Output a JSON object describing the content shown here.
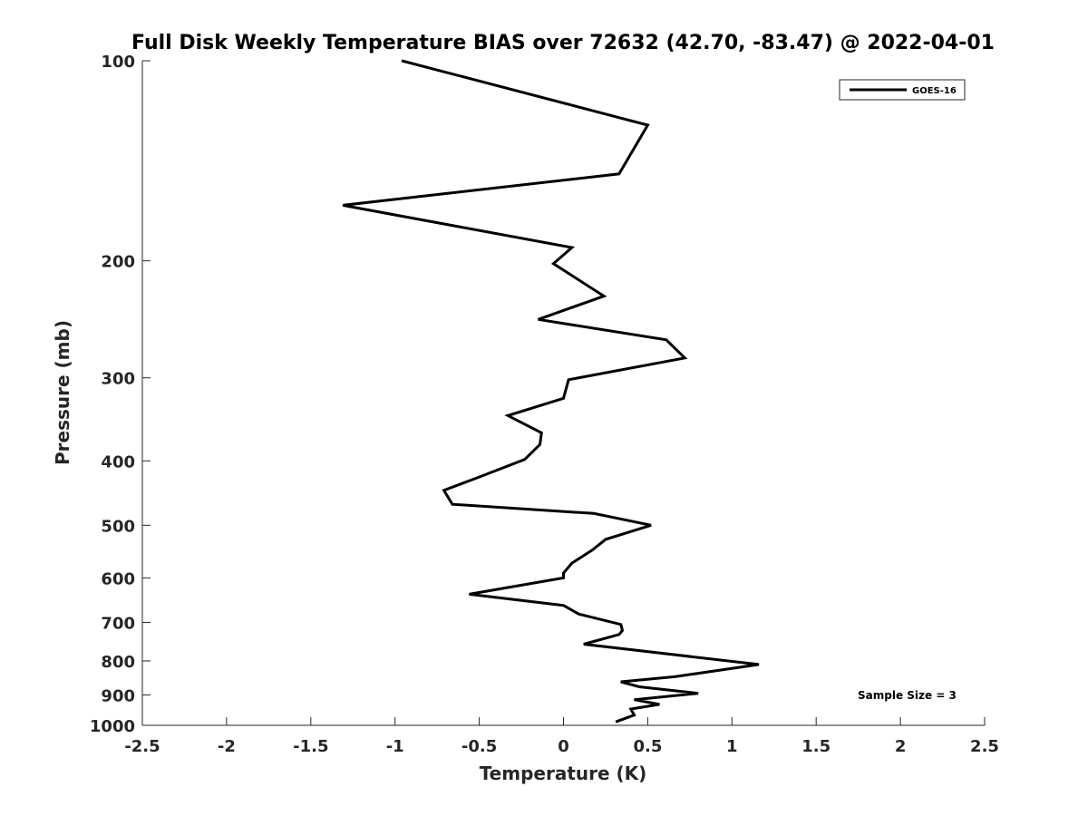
{
  "chart_data": {
    "type": "line",
    "title": "Full Disk Weekly Temperature BIAS over 72632 (42.70, -83.47) @ 2022-04-01",
    "xlabel": "Temperature (K)",
    "ylabel": "Pressure (mb)",
    "xlim": [
      -2.5,
      2.5
    ],
    "ylim": [
      100,
      1000
    ],
    "y_scale": "log",
    "y_reversed": true,
    "xticks": [
      "-2.5",
      "-2",
      "-1.5",
      "-1",
      "-0.5",
      "0",
      "0.5",
      "1",
      "1.5",
      "2",
      "2.5"
    ],
    "yticks": [
      "100",
      "200",
      "300",
      "400",
      "500",
      "600",
      "700",
      "800",
      "900",
      "1000"
    ],
    "grid": false,
    "legend_position": "top-right",
    "series": [
      {
        "name": "GOES-16",
        "color": "#000000",
        "points": [
          [
            -0.96,
            100
          ],
          [
            0.5,
            125
          ],
          [
            0.33,
            148
          ],
          [
            -1.31,
            165
          ],
          [
            0.05,
            191
          ],
          [
            -0.06,
            202
          ],
          [
            0.24,
            226
          ],
          [
            -0.15,
            245
          ],
          [
            0.61,
            263
          ],
          [
            0.72,
            280
          ],
          [
            0.03,
            302
          ],
          [
            0.0,
            322
          ],
          [
            -0.33,
            342
          ],
          [
            -0.13,
            363
          ],
          [
            -0.14,
            378
          ],
          [
            -0.23,
            398
          ],
          [
            -0.5,
            423
          ],
          [
            -0.71,
            443
          ],
          [
            -0.66,
            465
          ],
          [
            0.18,
            480
          ],
          [
            0.52,
            500
          ],
          [
            0.25,
            525
          ],
          [
            0.17,
            545
          ],
          [
            0.05,
            570
          ],
          [
            0.0,
            590
          ],
          [
            0.0,
            600
          ],
          [
            -0.56,
            635
          ],
          [
            0.0,
            660
          ],
          [
            0.09,
            680
          ],
          [
            0.34,
            705
          ],
          [
            0.35,
            720
          ],
          [
            0.33,
            730
          ],
          [
            0.12,
            755
          ],
          [
            1.16,
            810
          ],
          [
            0.66,
            845
          ],
          [
            0.34,
            860
          ],
          [
            0.45,
            875
          ],
          [
            0.8,
            895
          ],
          [
            0.42,
            915
          ],
          [
            0.57,
            930
          ],
          [
            0.4,
            945
          ],
          [
            0.42,
            965
          ],
          [
            0.31,
            988
          ]
        ]
      }
    ],
    "annotation": "Sample Size = 3"
  }
}
